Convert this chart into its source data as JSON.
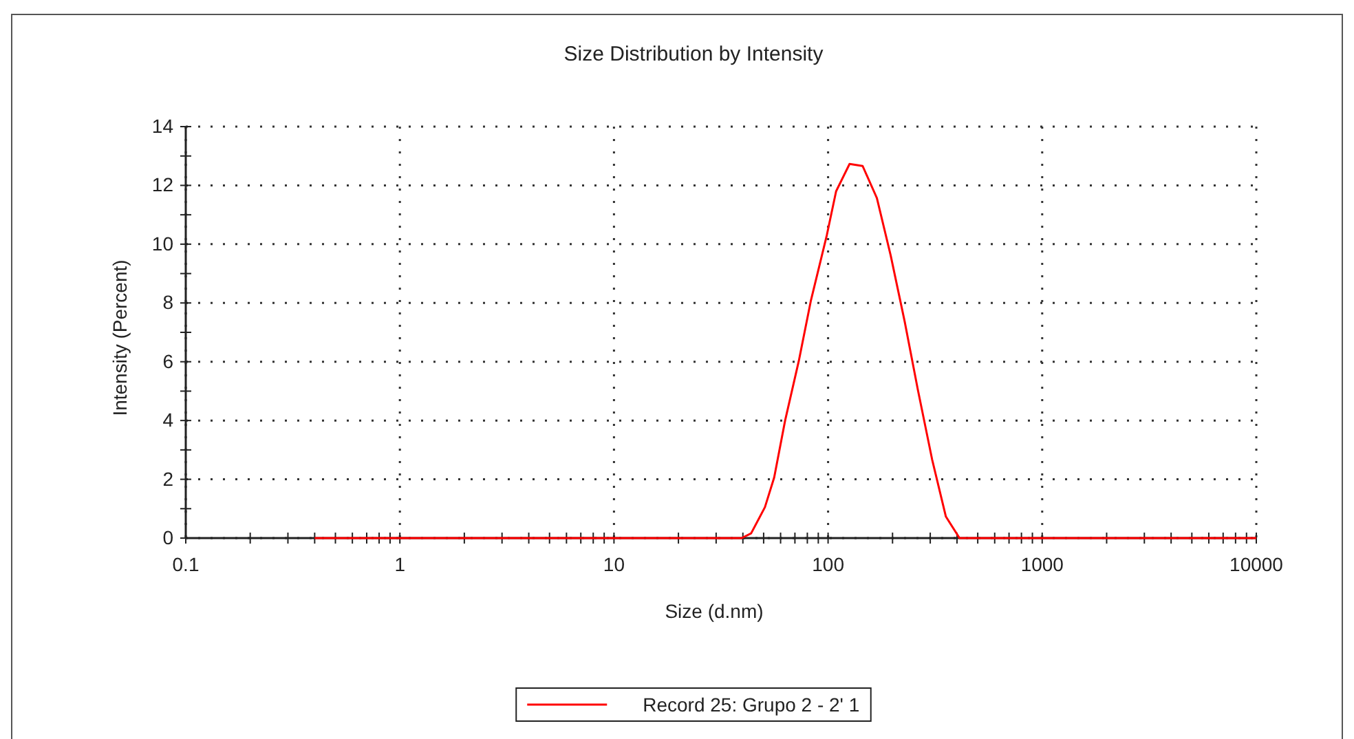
{
  "chart_data": {
    "type": "line",
    "title": "Size Distribution by Intensity",
    "xlabel": "Size (d.nm)",
    "ylabel": "Intensity (Percent)",
    "log": "x",
    "grid": true,
    "legend": "bottom",
    "marker": "none",
    "line_style": "solid",
    "xlim": [
      0.1,
      10000
    ],
    "xticks": [
      0.1,
      {
        "value": 0.2,
        "label": null
      },
      {
        "value": 0.3,
        "label": null
      },
      {
        "value": 0.4,
        "label": null
      },
      {
        "value": 0.5,
        "label": null
      },
      {
        "value": 0.6,
        "label": null
      },
      {
        "value": 0.7,
        "label": null
      },
      {
        "value": 0.8,
        "label": null
      },
      {
        "value": 0.9,
        "label": null
      },
      1,
      {
        "value": 2,
        "label": null
      },
      {
        "value": 3,
        "label": null
      },
      {
        "value": 4,
        "label": null
      },
      {
        "value": 5,
        "label": null
      },
      {
        "value": 6,
        "label": null
      },
      {
        "value": 7,
        "label": null
      },
      {
        "value": 8,
        "label": null
      },
      {
        "value": 9,
        "label": null
      },
      10,
      {
        "value": 20,
        "label": null
      },
      {
        "value": 30,
        "label": null
      },
      {
        "value": 40,
        "label": null
      },
      {
        "value": 50,
        "label": null
      },
      {
        "value": 60,
        "label": null
      },
      {
        "value": 70,
        "label": null
      },
      {
        "value": 80,
        "label": null
      },
      {
        "value": 90,
        "label": null
      },
      100,
      {
        "value": 200,
        "label": null
      },
      {
        "value": 300,
        "label": null
      },
      {
        "value": 400,
        "label": null
      },
      {
        "value": 500,
        "label": null
      },
      {
        "value": 600,
        "label": null
      },
      {
        "value": 700,
        "label": null
      },
      {
        "value": 800,
        "label": null
      },
      {
        "value": 900,
        "label": null
      },
      1000,
      {
        "value": 2000,
        "label": null
      },
      {
        "value": 3000,
        "label": null
      },
      {
        "value": 4000,
        "label": null
      },
      {
        "value": 5000,
        "label": null
      },
      {
        "value": 6000,
        "label": null
      },
      {
        "value": 7000,
        "label": null
      },
      {
        "value": 8000,
        "label": null
      },
      {
        "value": 9000,
        "label": null
      },
      10000
    ],
    "ylim": [
      0,
      14
    ],
    "yticks": [
      0,
      {
        "value": 1,
        "label": null
      },
      2,
      {
        "value": 3,
        "label": null
      },
      4,
      {
        "value": 5,
        "label": null
      },
      6,
      {
        "value": 7,
        "label": null
      },
      8,
      {
        "value": 9,
        "label": null
      },
      10,
      {
        "value": 11,
        "label": null
      },
      12,
      {
        "value": 13,
        "label": null
      },
      14
    ],
    "series": [
      {
        "name": "Record 25: Grupo 2 - 2' 1",
        "color": "#ff0000",
        "x": [
          0.4,
          39.5,
          43.7,
          50.7,
          56,
          63,
          73,
          83,
          98.6,
          109,
          126,
          145,
          169,
          196,
          228,
          263,
          306,
          355,
          411,
          10000
        ],
        "values": [
          0,
          0,
          0.16,
          1.05,
          2.06,
          4.0,
          6.03,
          8.06,
          10.3,
          11.8,
          12.73,
          12.66,
          11.57,
          9.62,
          7.36,
          5.02,
          2.68,
          0.73,
          0,
          0
        ]
      }
    ]
  }
}
